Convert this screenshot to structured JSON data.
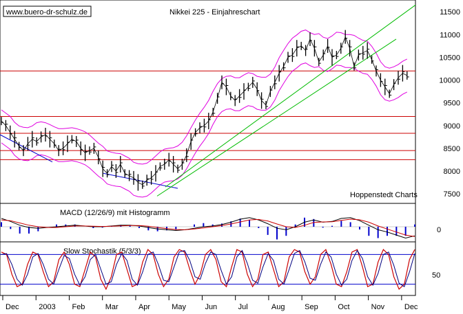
{
  "site_label": "www.buero-dr-schulz.de",
  "chart_data": {
    "type": "line",
    "title": "Nikkei 225 - Einjahreschart",
    "source": "Hoppenstedt Charts",
    "x_tick_labels": [
      "Dec",
      "2003",
      "Feb",
      "Mar",
      "Apr",
      "May",
      "Jun",
      "Jul",
      "Aug",
      "Sep",
      "Oct",
      "Nov",
      "Dec"
    ],
    "price_axis_labels": [
      "11500",
      "11000",
      "10500",
      "10000",
      "9500",
      "9000",
      "8500",
      "8000",
      "7500"
    ],
    "price_ylim": [
      7350,
      11700
    ],
    "horizontal_levels": [
      10200,
      9200,
      8830,
      8450,
      8250
    ],
    "price": {
      "name": "Nikkei 225",
      "x": [
        0,
        8,
        16,
        24,
        32,
        40,
        48,
        56,
        64,
        70,
        76,
        84,
        92,
        100,
        108,
        116,
        124,
        130,
        136,
        144,
        150,
        156,
        162,
        168,
        176,
        184,
        192,
        198,
        204,
        210,
        216,
        222,
        228,
        234,
        240,
        246,
        252,
        258,
        264,
        270,
        276,
        282,
        288,
        296,
        304,
        310,
        316,
        322,
        330,
        336,
        342,
        348,
        354,
        360,
        366,
        372,
        378,
        384,
        390,
        396,
        402,
        408,
        414,
        420,
        426,
        432,
        438,
        444,
        450,
        456,
        462,
        468,
        474,
        480,
        486,
        492,
        498,
        504,
        510,
        516,
        522,
        528,
        534,
        540,
        546,
        552,
        558,
        564,
        570,
        576,
        582,
        588,
        594
      ],
      "y": [
        9100,
        9000,
        8850,
        8700,
        8550,
        8450,
        8600,
        8700,
        8650,
        8750,
        8800,
        8700,
        8600,
        8450,
        8500,
        8600,
        8700,
        8650,
        8500,
        8400,
        8450,
        8500,
        8300,
        8050,
        7950,
        8100,
        8000,
        8150,
        7950,
        7900,
        7850,
        7750,
        7700,
        7800,
        7850,
        7950,
        8100,
        8150,
        8250,
        8150,
        8050,
        8150,
        8350,
        8650,
        8850,
        8950,
        9000,
        9100,
        9300,
        9600,
        9950,
        9850,
        9650,
        9550,
        9650,
        9750,
        9850,
        9950,
        9800,
        9550,
        9450,
        9750,
        9950,
        10150,
        10300,
        10500,
        10550,
        10700,
        10750,
        10650,
        10900,
        10700,
        10400,
        10550,
        10750,
        10500,
        10550,
        10700,
        10950,
        10700,
        10300,
        10550,
        10600,
        10650,
        10450,
        10200,
        10000,
        9850,
        9700,
        9900,
        10050,
        10150,
        10100
      ]
    },
    "macd": {
      "label": "MACD (12/26/9) mit Histogramm",
      "zero_label": "0",
      "macd_line": [
        0.55,
        0.35,
        0.1,
        -0.05,
        -0.1,
        -0.05,
        0.0,
        0.05,
        0.1,
        0.05,
        0.0,
        0.0,
        0.05,
        0.1,
        0.1,
        0.05,
        -0.05,
        -0.15,
        -0.2,
        -0.25,
        -0.2,
        -0.1,
        0.0,
        0.05,
        0.15,
        0.3,
        0.5,
        0.6,
        0.45,
        0.2,
        -0.1,
        -0.2,
        0.0,
        0.3,
        0.45,
        0.3,
        0.35,
        0.55,
        0.6,
        0.4,
        0.1,
        -0.2,
        -0.35,
        -0.55,
        -0.75,
        -0.6
      ],
      "signal_line": [
        0.45,
        0.4,
        0.25,
        0.1,
        0.0,
        -0.05,
        -0.05,
        0.0,
        0.05,
        0.05,
        0.03,
        0.02,
        0.03,
        0.06,
        0.08,
        0.08,
        0.03,
        -0.05,
        -0.12,
        -0.18,
        -0.2,
        -0.15,
        -0.08,
        0.0,
        0.08,
        0.18,
        0.32,
        0.45,
        0.48,
        0.38,
        0.18,
        0.0,
        -0.05,
        0.1,
        0.28,
        0.32,
        0.33,
        0.42,
        0.5,
        0.46,
        0.3,
        0.05,
        -0.15,
        -0.35,
        -0.55,
        -0.65
      ]
    },
    "stochastic": {
      "label": "Slow Stochastik (5/3/3)",
      "axis_label": "50",
      "k": [
        85,
        80,
        40,
        15,
        20,
        60,
        85,
        80,
        45,
        15,
        25,
        70,
        85,
        60,
        20,
        15,
        50,
        85,
        75,
        30,
        10,
        35,
        80,
        85,
        50,
        15,
        20,
        65,
        90,
        80,
        40,
        15,
        30,
        75,
        90,
        85,
        50,
        20,
        40,
        80,
        90,
        70,
        25,
        15,
        55,
        90,
        85,
        40,
        15,
        30,
        80,
        85,
        50,
        15,
        25,
        75,
        90,
        85,
        45,
        20,
        35,
        80,
        90,
        60,
        20,
        15,
        45,
        85,
        90,
        55,
        15,
        20,
        65,
        90,
        80,
        35,
        10,
        20,
        70,
        90
      ],
      "d": [
        80,
        82,
        60,
        30,
        18,
        40,
        75,
        82,
        60,
        30,
        20,
        50,
        78,
        72,
        40,
        18,
        35,
        70,
        80,
        50,
        20,
        25,
        60,
        82,
        68,
        30,
        18,
        45,
        80,
        85,
        60,
        28,
        25,
        55,
        85,
        88,
        68,
        35,
        30,
        62,
        85,
        80,
        48,
        20,
        35,
        75,
        88,
        62,
        28,
        22,
        55,
        82,
        68,
        30,
        20,
        50,
        82,
        88,
        65,
        32,
        28,
        60,
        85,
        75,
        40,
        18,
        30,
        68,
        88,
        72,
        35,
        18,
        42,
        80,
        85,
        58,
        22,
        15,
        45,
        82
      ]
    }
  }
}
